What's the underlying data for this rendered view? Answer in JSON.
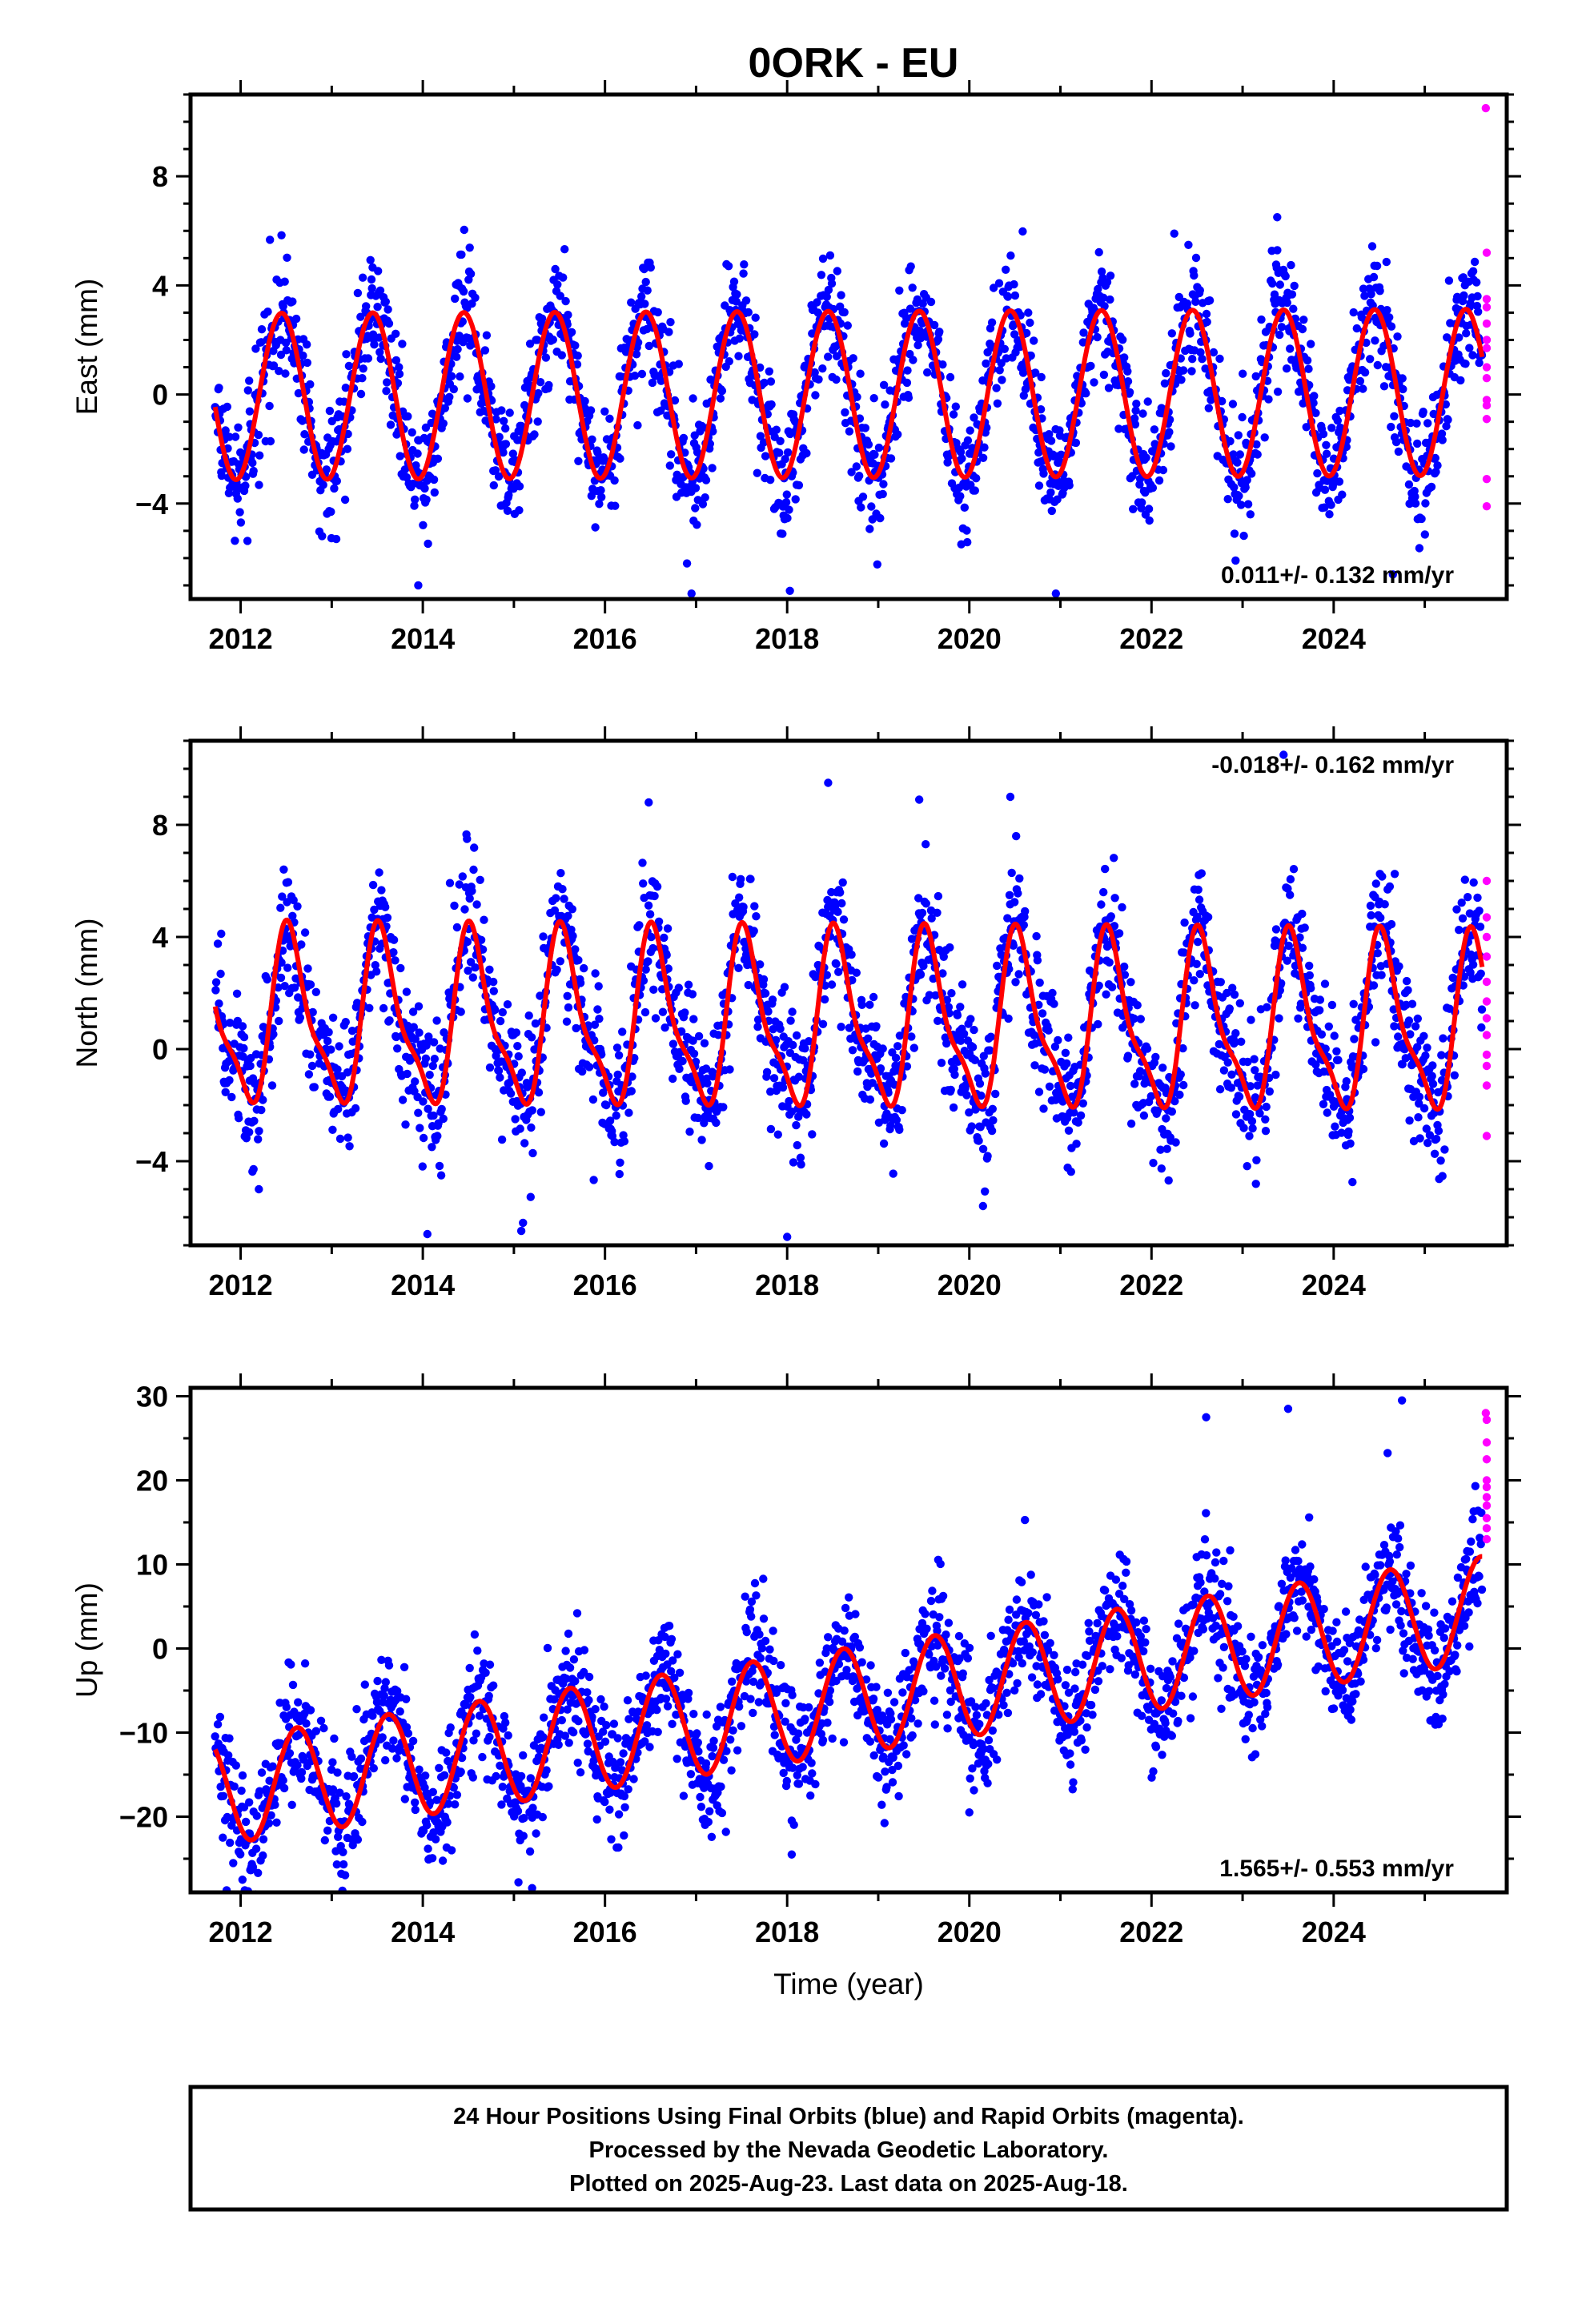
{
  "title": "0ORK - EU",
  "colors": {
    "final": "#0000ff",
    "rapid": "#ff00ff",
    "model": "#ff0000",
    "frame": "#000000"
  },
  "xlabel": "Time (year)",
  "footer": [
    "24 Hour Positions Using Final Orbits (blue) and Rapid Orbits (magenta).",
    "Processed by the Nevada Geodetic Laboratory.",
    "Plotted on 2025-Aug-23. Last data on 2025-Aug-18."
  ],
  "chart_data": [
    {
      "type": "scatter",
      "component": "east",
      "ylabel": "East (mm)",
      "xlim": [
        2011.45,
        2025.9
      ],
      "ylim": [
        -7.5,
        11
      ],
      "yticks": [
        -4,
        0,
        4,
        8
      ],
      "xticks": [
        2012,
        2014,
        2016,
        2018,
        2020,
        2022,
        2024
      ],
      "rate_label": "0.011+/- 0.132 mm/yr",
      "rate_position": "bottom-right",
      "data_start": 2011.72,
      "data_end": 2025.63,
      "model": {
        "offset": 0.0,
        "trend_mm_per_yr": 0.011,
        "annual_amp": 3.05,
        "annual_peak": 2012.45,
        "semiannual_amp": 0.0,
        "semiannual_phase": 0.0
      },
      "noise_mm": 1.1,
      "outliers": [
        {
          "x": 2013.95,
          "y": -7.0
        },
        {
          "x": 2016.95,
          "y": -7.3
        },
        {
          "x": 2018.03,
          "y": -7.2
        },
        {
          "x": 2020.95,
          "y": -7.3
        },
        {
          "x": 2024.65,
          "y": -6.6
        },
        {
          "x": 2013.05,
          "y": -5.3
        },
        {
          "x": 2022.25,
          "y": 5.9
        },
        {
          "x": 2023.38,
          "y": 6.5
        }
      ],
      "rapid": [
        {
          "x": 2025.67,
          "y": 10.5
        },
        {
          "x": 2025.68,
          "y": 5.2
        },
        {
          "x": 2025.68,
          "y": 3.5
        },
        {
          "x": 2025.68,
          "y": 3.2
        },
        {
          "x": 2025.68,
          "y": 2.6
        },
        {
          "x": 2025.68,
          "y": 2.0
        },
        {
          "x": 2025.68,
          "y": 1.7
        },
        {
          "x": 2025.68,
          "y": 1.0
        },
        {
          "x": 2025.68,
          "y": 0.6
        },
        {
          "x": 2025.68,
          "y": -0.2
        },
        {
          "x": 2025.68,
          "y": -0.4
        },
        {
          "x": 2025.68,
          "y": -0.9
        },
        {
          "x": 2025.68,
          "y": -3.1
        },
        {
          "x": 2025.68,
          "y": -4.1
        }
      ]
    },
    {
      "type": "scatter",
      "component": "north",
      "ylabel": "North (mm)",
      "xlim": [
        2011.45,
        2025.9
      ],
      "ylim": [
        -7.0,
        11
      ],
      "yticks": [
        -4,
        0,
        4,
        8
      ],
      "xticks": [
        2012,
        2014,
        2016,
        2018,
        2020,
        2022,
        2024
      ],
      "rate_label": "-0.018+/- 0.162 mm/yr",
      "rate_position": "top-right",
      "data_start": 2011.72,
      "data_end": 2025.63,
      "model": {
        "offset": 0.9,
        "trend_mm_per_yr": -0.018,
        "annual_amp": 2.9,
        "annual_peak": 2012.55,
        "semiannual_amp": 0.9,
        "semiannual_phase": 2012.47
      },
      "noise_mm": 1.2,
      "outliers": [
        {
          "x": 2014.05,
          "y": -6.6
        },
        {
          "x": 2015.1,
          "y": -6.2
        },
        {
          "x": 2018.0,
          "y": -6.7
        },
        {
          "x": 2020.15,
          "y": -5.6
        },
        {
          "x": 2012.2,
          "y": -5.0
        },
        {
          "x": 2023.45,
          "y": 10.5
        },
        {
          "x": 2018.45,
          "y": 9.5
        },
        {
          "x": 2016.48,
          "y": 8.8
        },
        {
          "x": 2020.45,
          "y": 9.0
        },
        {
          "x": 2019.45,
          "y": 8.9
        }
      ],
      "rapid": [
        {
          "x": 2025.68,
          "y": 6.0
        },
        {
          "x": 2025.68,
          "y": 4.7
        },
        {
          "x": 2025.68,
          "y": 4.0
        },
        {
          "x": 2025.68,
          "y": 3.3
        },
        {
          "x": 2025.68,
          "y": 2.4
        },
        {
          "x": 2025.68,
          "y": 1.7
        },
        {
          "x": 2025.68,
          "y": 1.1
        },
        {
          "x": 2025.68,
          "y": 0.5
        },
        {
          "x": 2025.68,
          "y": -0.2
        },
        {
          "x": 2025.68,
          "y": -0.6
        },
        {
          "x": 2025.68,
          "y": -1.3
        },
        {
          "x": 2025.68,
          "y": -3.1
        }
      ]
    },
    {
      "type": "scatter",
      "component": "up",
      "ylabel": "Up (mm)",
      "xlim": [
        2011.45,
        2025.9
      ],
      "ylim": [
        -29,
        31
      ],
      "yticks": [
        -20,
        -10,
        0,
        10,
        20,
        30
      ],
      "xticks": [
        2012,
        2014,
        2016,
        2018,
        2020,
        2022,
        2024
      ],
      "rate_label": "1.565+/- 0.553 mm/yr",
      "rate_position": "bottom-right",
      "data_start": 2011.72,
      "data_end": 2025.63,
      "model": {
        "offset": -6.5,
        "trend_mm_per_yr": 1.565,
        "annual_amp": 6.3,
        "annual_peak": 2012.62,
        "semiannual_amp": 0.0,
        "semiannual_phase": 0.0
      },
      "noise_mm": 3.6,
      "outliers": [
        {
          "x": 2012.02,
          "y": -27.5
        },
        {
          "x": 2015.05,
          "y": -27.8
        },
        {
          "x": 2015.2,
          "y": -28.5
        },
        {
          "x": 2013.1,
          "y": -23.5
        },
        {
          "x": 2018.05,
          "y": -24.5
        },
        {
          "x": 2020.0,
          "y": -19.5
        },
        {
          "x": 2024.75,
          "y": 29.5
        },
        {
          "x": 2023.5,
          "y": 28.5
        },
        {
          "x": 2022.6,
          "y": 27.5
        }
      ],
      "rapid": [
        {
          "x": 2025.67,
          "y": 28.0
        },
        {
          "x": 2025.68,
          "y": 27.2
        },
        {
          "x": 2025.68,
          "y": 24.5
        },
        {
          "x": 2025.68,
          "y": 22.5
        },
        {
          "x": 2025.68,
          "y": 20.0
        },
        {
          "x": 2025.68,
          "y": 19.2
        },
        {
          "x": 2025.68,
          "y": 18.0
        },
        {
          "x": 2025.68,
          "y": 17.0
        },
        {
          "x": 2025.68,
          "y": 15.5
        },
        {
          "x": 2025.68,
          "y": 14.3
        },
        {
          "x": 2025.68,
          "y": 13.0
        }
      ]
    }
  ]
}
